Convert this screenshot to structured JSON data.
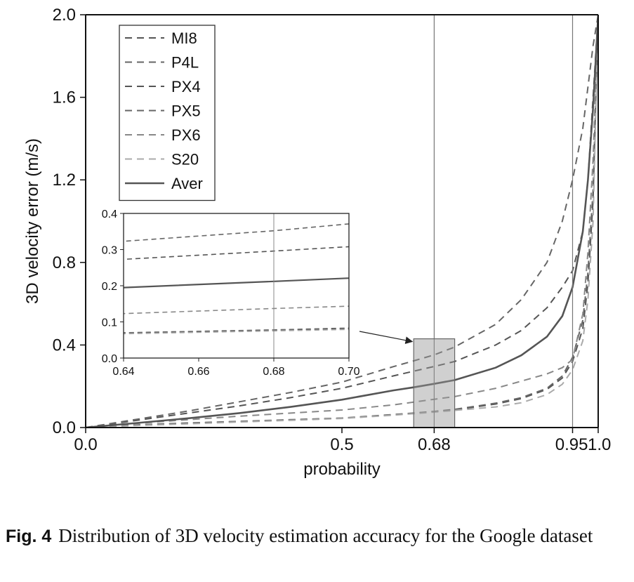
{
  "chart_data": {
    "type": "line",
    "xlabel": "probability",
    "ylabel": "3D velocity error (m/s)",
    "xlim": [
      0.0,
      1.0
    ],
    "ylim": [
      0.0,
      2.0
    ],
    "x_ticks": [
      "0.0",
      "0.5",
      "0.68",
      "0.95",
      "1.0"
    ],
    "x_tick_values": [
      0.0,
      0.5,
      0.68,
      0.95,
      1.0
    ],
    "y_ticks": [
      "0.0",
      "0.4",
      "0.8",
      "1.2",
      "1.6",
      "2.0"
    ],
    "y_tick_values": [
      0.0,
      0.4,
      0.8,
      1.2,
      1.6,
      2.0
    ],
    "reference_lines_x": [
      0.68,
      0.95
    ],
    "legend_position": "top-left",
    "x": [
      0.0,
      0.1,
      0.2,
      0.3,
      0.4,
      0.5,
      0.6,
      0.64,
      0.68,
      0.72,
      0.8,
      0.85,
      0.9,
      0.93,
      0.95,
      0.97,
      0.98,
      0.99,
      1.0
    ],
    "series": [
      {
        "name": "MI8",
        "style": "dashed",
        "color": "#555555",
        "values": [
          0.0,
          0.012,
          0.021,
          0.029,
          0.037,
          0.045,
          0.062,
          0.069,
          0.077,
          0.086,
          0.114,
          0.14,
          0.185,
          0.24,
          0.32,
          0.48,
          0.7,
          1.1,
          2.0
        ]
      },
      {
        "name": "P4L",
        "style": "dashed",
        "color": "#666666",
        "values": [
          0.0,
          0.013,
          0.022,
          0.03,
          0.038,
          0.046,
          0.063,
          0.07,
          0.078,
          0.088,
          0.118,
          0.145,
          0.19,
          0.25,
          0.34,
          0.52,
          0.75,
          1.15,
          2.0
        ]
      },
      {
        "name": "PX4",
        "style": "dashed",
        "color": "#555555",
        "values": [
          0.0,
          0.035,
          0.07,
          0.105,
          0.145,
          0.19,
          0.25,
          0.273,
          0.296,
          0.32,
          0.4,
          0.47,
          0.58,
          0.68,
          0.76,
          0.95,
          1.2,
          1.6,
          2.0
        ]
      },
      {
        "name": "PX5",
        "style": "dashed",
        "color": "#666666",
        "values": [
          0.0,
          0.04,
          0.08,
          0.125,
          0.17,
          0.22,
          0.295,
          0.323,
          0.352,
          0.39,
          0.5,
          0.62,
          0.8,
          1.0,
          1.2,
          1.45,
          1.65,
          1.85,
          2.0
        ]
      },
      {
        "name": "PX6",
        "style": "dashed",
        "color": "#888888",
        "values": [
          0.0,
          0.02,
          0.038,
          0.055,
          0.07,
          0.085,
          0.11,
          0.123,
          0.137,
          0.15,
          0.19,
          0.225,
          0.26,
          0.29,
          0.33,
          0.55,
          0.85,
          1.3,
          2.0
        ]
      },
      {
        "name": "S20",
        "style": "dashed",
        "color": "#aaaaaa",
        "values": [
          0.0,
          0.01,
          0.018,
          0.027,
          0.035,
          0.044,
          0.06,
          0.067,
          0.075,
          0.083,
          0.1,
          0.12,
          0.16,
          0.21,
          0.28,
          0.42,
          0.62,
          1.0,
          2.0
        ]
      },
      {
        "name": "Aver",
        "style": "solid",
        "color": "#555555",
        "values": [
          0.0,
          0.022,
          0.045,
          0.07,
          0.1,
          0.135,
          0.18,
          0.195,
          0.212,
          0.23,
          0.29,
          0.35,
          0.44,
          0.54,
          0.68,
          0.95,
          1.2,
          1.55,
          2.0
        ]
      }
    ],
    "inset": {
      "xlim": [
        0.64,
        0.7
      ],
      "ylim": [
        0.0,
        0.4
      ],
      "x_ticks": [
        "0.64",
        "0.66",
        "0.68",
        "0.70"
      ],
      "x_tick_values": [
        0.64,
        0.66,
        0.68,
        0.7
      ],
      "y_ticks": [
        "0.0",
        "0.1",
        "0.2",
        "0.3",
        "0.4"
      ],
      "y_tick_values": [
        0.0,
        0.1,
        0.2,
        0.3,
        0.4
      ],
      "reference_line_x": 0.68,
      "zoom_box": {
        "x": [
          0.64,
          0.72
        ],
        "y": [
          0.0,
          0.43
        ]
      }
    }
  },
  "caption": {
    "label": "Fig. 4",
    "text": "Distribution of 3D velocity estimation accuracy for the Google dataset"
  }
}
